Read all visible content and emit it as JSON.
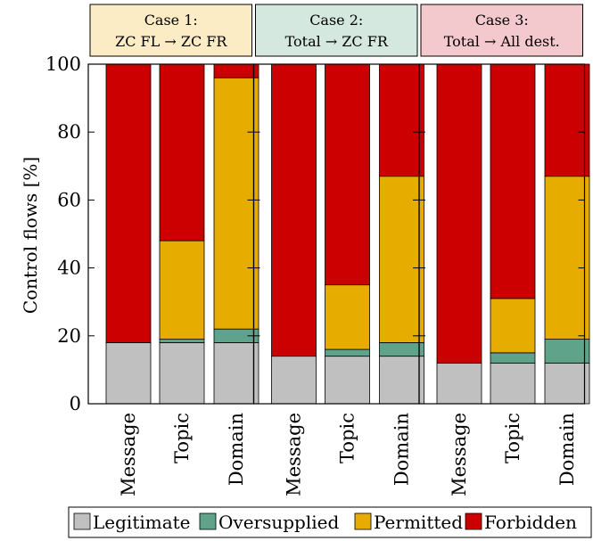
{
  "chart_data": {
    "type": "bar",
    "stacked": true,
    "ylabel": "Control flows [%]",
    "ylim": [
      0,
      100
    ],
    "yticks": [
      0,
      20,
      40,
      60,
      80,
      100
    ],
    "grid": false,
    "legend_placement": "bottom",
    "categories": [
      "Message",
      "Topic",
      "Domain"
    ],
    "series_colors": {
      "Legitimate": "#c0c0c0",
      "Oversupplied": "#5fa38a",
      "Permitted": "#e6ac00",
      "Forbidden": "#cc0000"
    },
    "legend": [
      "Legitimate",
      "Oversupplied",
      "Permitted",
      "Forbidden"
    ],
    "panels": [
      {
        "header_line1": "Case 1:",
        "header_line2": "ZC FL → ZC FR",
        "header_color": "#fbecc6",
        "series": [
          {
            "name": "Legitimate",
            "values": [
              18,
              18,
              18
            ]
          },
          {
            "name": "Oversupplied",
            "values": [
              0,
              1,
              4
            ]
          },
          {
            "name": "Permitted",
            "values": [
              0,
              29,
              74
            ]
          },
          {
            "name": "Forbidden",
            "values": [
              82,
              52,
              4
            ]
          }
        ]
      },
      {
        "header_line1": "Case 2:",
        "header_line2": "Total → ZC FR",
        "header_color": "#d4e8e0",
        "series": [
          {
            "name": "Legitimate",
            "values": [
              14,
              14,
              14
            ]
          },
          {
            "name": "Oversupplied",
            "values": [
              0,
              2,
              4
            ]
          },
          {
            "name": "Permitted",
            "values": [
              0,
              19,
              49
            ]
          },
          {
            "name": "Forbidden",
            "values": [
              86,
              65,
              33
            ]
          }
        ]
      },
      {
        "header_line1": "Case 3:",
        "header_line2": "Total → All dest.",
        "header_color": "#f4c9cd",
        "series": [
          {
            "name": "Legitimate",
            "values": [
              12,
              12,
              12
            ]
          },
          {
            "name": "Oversupplied",
            "values": [
              0,
              3,
              7
            ]
          },
          {
            "name": "Permitted",
            "values": [
              0,
              16,
              48
            ]
          },
          {
            "name": "Forbidden",
            "values": [
              88,
              69,
              33
            ]
          }
        ]
      }
    ]
  }
}
